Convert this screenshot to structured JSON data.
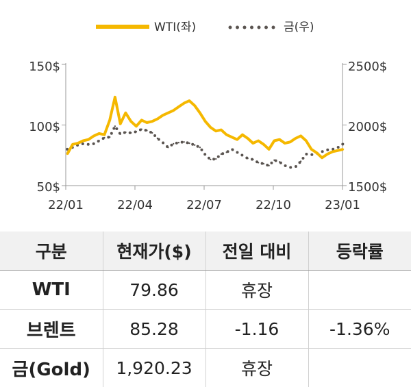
{
  "chart_data": {
    "type": "line",
    "legend": {
      "position": "top-center",
      "entries": [
        "WTI(좌)",
        "금(우)"
      ]
    },
    "x_tick_labels": [
      "22/01",
      "22/04",
      "22/07",
      "22/10",
      "23/01"
    ],
    "y_left": {
      "ticks": [
        "150$",
        "100$",
        "50$"
      ],
      "ylim": [
        50,
        150
      ]
    },
    "y_right": {
      "ticks": [
        "2500$",
        "2000$",
        "1500$"
      ],
      "ylim": [
        1500,
        2500
      ]
    },
    "grid": false,
    "x": [
      "2022-01-03",
      "2022-01-10",
      "2022-01-17",
      "2022-01-24",
      "2022-01-31",
      "2022-02-07",
      "2022-02-14",
      "2022-02-21",
      "2022-02-28",
      "2022-03-07",
      "2022-03-14",
      "2022-03-21",
      "2022-03-28",
      "2022-04-04",
      "2022-04-11",
      "2022-04-18",
      "2022-04-25",
      "2022-05-02",
      "2022-05-09",
      "2022-05-16",
      "2022-05-23",
      "2022-05-30",
      "2022-06-06",
      "2022-06-13",
      "2022-06-20",
      "2022-06-27",
      "2022-07-04",
      "2022-07-11",
      "2022-07-18",
      "2022-07-25",
      "2022-08-01",
      "2022-08-08",
      "2022-08-15",
      "2022-08-22",
      "2022-08-29",
      "2022-09-05",
      "2022-09-12",
      "2022-09-19",
      "2022-09-26",
      "2022-10-03",
      "2022-10-10",
      "2022-10-17",
      "2022-10-24",
      "2022-10-31",
      "2022-11-07",
      "2022-11-14",
      "2022-11-21",
      "2022-11-28",
      "2022-12-05",
      "2022-12-12",
      "2022-12-19",
      "2022-12-26",
      "2023-01-02"
    ],
    "series": [
      {
        "name": "WTI(좌)",
        "axis": "left",
        "color": "#F5B800",
        "style": "solid",
        "values": [
          76,
          84,
          85,
          87,
          88,
          91,
          93,
          92,
          104,
          123,
          101,
          110,
          103,
          99,
          104,
          102,
          103,
          105,
          108,
          110,
          112,
          115,
          118,
          120,
          116,
          110,
          103,
          98,
          95,
          96,
          92,
          90,
          88,
          92,
          89,
          85,
          87,
          84,
          80,
          87,
          88,
          85,
          86,
          89,
          91,
          87,
          80,
          77,
          73,
          76,
          78,
          79,
          80
        ]
      },
      {
        "name": "금(우)",
        "axis": "right",
        "color": "#5a5450",
        "style": "dotted",
        "values": [
          1800,
          1815,
          1835,
          1845,
          1840,
          1845,
          1870,
          1895,
          1900,
          1990,
          1925,
          1940,
          1935,
          1945,
          1965,
          1955,
          1935,
          1890,
          1855,
          1815,
          1845,
          1855,
          1860,
          1850,
          1835,
          1815,
          1755,
          1715,
          1720,
          1760,
          1775,
          1800,
          1775,
          1750,
          1725,
          1715,
          1690,
          1680,
          1665,
          1710,
          1695,
          1665,
          1650,
          1655,
          1700,
          1760,
          1755,
          1765,
          1780,
          1795,
          1800,
          1815,
          1845
        ]
      }
    ]
  },
  "table": {
    "headers": [
      "구분",
      "현재가($)",
      "전일 대비",
      "등락률"
    ],
    "rows": [
      [
        "WTI",
        "79.86",
        "휴장",
        ""
      ],
      [
        "브렌트",
        "85.28",
        "-1.16",
        "-1.36%"
      ],
      [
        "금(Gold)",
        "1,920.23",
        "휴장",
        ""
      ]
    ]
  }
}
